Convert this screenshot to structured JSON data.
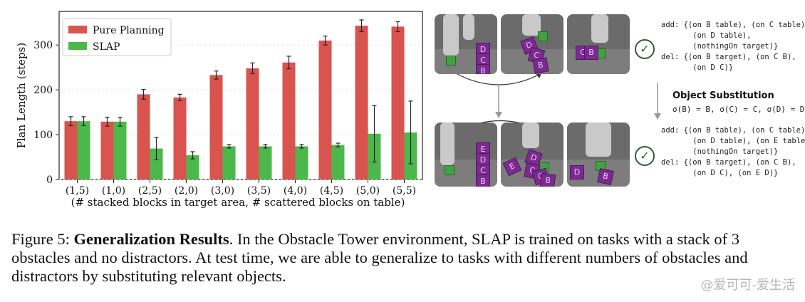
{
  "chart_data": {
    "type": "bar",
    "categories": [
      "(1,5)",
      "(1,0)",
      "(2,5)",
      "(2,0)",
      "(3,0)",
      "(3,5)",
      "(4,0)",
      "(4,5)",
      "(5,0)",
      "(5,5)"
    ],
    "series": [
      {
        "name": "Pure Planning",
        "color": "#d9534f",
        "values": [
          130,
          129,
          190,
          183,
          233,
          248,
          261,
          310,
          343,
          341
        ],
        "errors": [
          10,
          10,
          11,
          7,
          9,
          12,
          14,
          10,
          13,
          11
        ]
      },
      {
        "name": "SLAP",
        "color": "#4cb84c",
        "values": [
          130,
          129,
          69,
          54,
          74,
          74,
          74,
          77,
          102,
          105
        ],
        "errors": [
          10,
          10,
          25,
          8,
          4,
          4,
          4,
          4,
          63,
          70
        ]
      }
    ],
    "ylabel": "Plan Length (steps)",
    "xlabel": "(# stacked blocks in target area, # scattered blocks on table)",
    "ylim": [
      0,
      375
    ],
    "yticks": [
      "0",
      "100",
      "200",
      "300"
    ],
    "grid": true,
    "legend_position": "top-left"
  },
  "diagram": {
    "row1_blocks": {
      "tower": [
        "D",
        "C",
        "B"
      ],
      "scatter": [
        "D",
        "C",
        "B"
      ],
      "final": [
        "C",
        "B"
      ]
    },
    "row2_blocks": {
      "tower": [
        "E",
        "D",
        "C",
        "B"
      ],
      "scatter": [
        "D",
        "E",
        "C",
        "C",
        "B"
      ],
      "final": [
        "D",
        "B"
      ]
    },
    "check_icon": "check-circle-icon",
    "effects1": "add: {(on B table), (on C table),\n       (on D table),\n       (nothingOn target)}\ndel: {(on B target), (on C B),\n       (on D C)}",
    "substitution_title": "Object Substitution",
    "substitution_map": "σ(B) = B, σ(C) = C, σ(D) = D",
    "effects2": "add: {(on B table), (on C table),\n       (on D table), (on E table),\n       (nothingOn target)}\ndel: {(on B target), (on C B),\n       (on D C), (on E D)}"
  },
  "caption": {
    "prefix": "Figure 5: ",
    "title": "Generalization Results",
    "body": ". In the Obstacle Tower environment, SLAP is trained on tasks with a stack of 3 obstacles and no distractors. At test time, we are able to generalize to tasks with different numbers of obstacles and distractors by substituting relevant objects."
  },
  "watermark": "@爱可可-爱生活"
}
